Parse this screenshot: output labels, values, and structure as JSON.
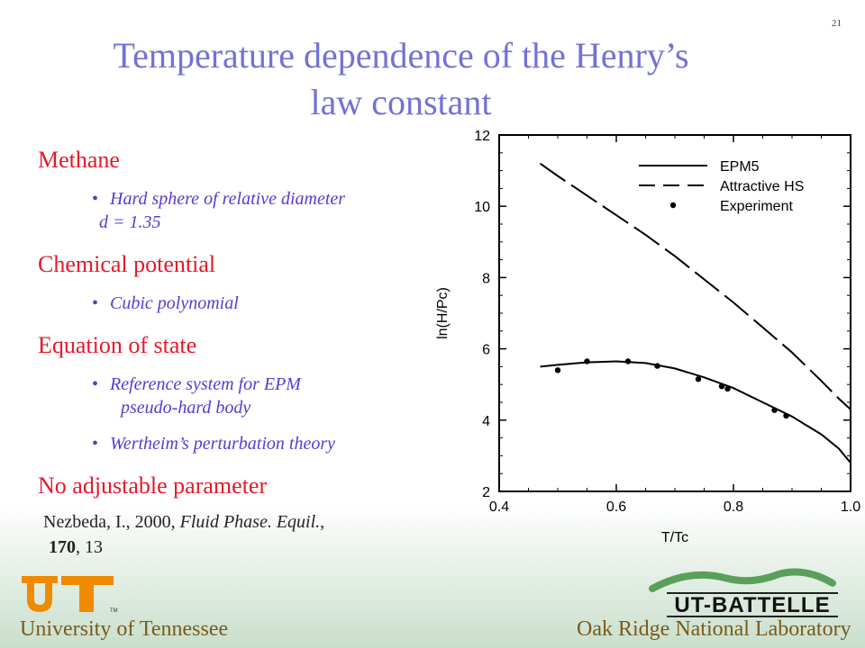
{
  "slide_number": "21",
  "title": {
    "line1": "Temperature dependence of the Henry’s",
    "line2": "law constant"
  },
  "bullets": [
    {
      "heading": "Methane",
      "subs": [
        [
          "Hard sphere of relative diameter",
          "d = 1.35"
        ]
      ]
    },
    {
      "heading": "Chemical potential",
      "subs": [
        [
          "Cubic polynomial"
        ]
      ]
    },
    {
      "heading": "Equation of state",
      "subs": [
        [
          "Reference system for EPM",
          "pseudo-hard body"
        ],
        [
          "Wertheim’s perturbation theory"
        ]
      ]
    },
    {
      "heading": "No adjustable parameter",
      "subs": []
    }
  ],
  "citation": {
    "authors": "Nezbeda, I., 2000,",
    "journal": "Fluid Phase. Equil.",
    "volume": "170",
    "pages": ", 13"
  },
  "chart_data": {
    "type": "line",
    "xlabel": "T/Tc",
    "ylabel": "ln(H/Pc)",
    "xlim": [
      0.4,
      1.0
    ],
    "ylim": [
      2,
      12
    ],
    "x_ticks": [
      "0.4",
      "0.6",
      "0.8",
      "1.0"
    ],
    "y_ticks": [
      "2",
      "4",
      "6",
      "8",
      "10",
      "12"
    ],
    "legend_position": "top-right",
    "series": [
      {
        "name": "EPM5",
        "style": "solid",
        "x": [
          0.47,
          0.5,
          0.55,
          0.6,
          0.65,
          0.7,
          0.75,
          0.8,
          0.85,
          0.9,
          0.95,
          0.98,
          1.0
        ],
        "y": [
          5.5,
          5.55,
          5.62,
          5.65,
          5.6,
          5.45,
          5.2,
          4.9,
          4.5,
          4.1,
          3.6,
          3.2,
          2.8
        ]
      },
      {
        "name": "Attractive HS",
        "style": "dashed",
        "x": [
          0.47,
          0.5,
          0.55,
          0.6,
          0.65,
          0.7,
          0.75,
          0.8,
          0.85,
          0.9,
          0.95,
          0.98,
          1.0
        ],
        "y": [
          11.2,
          10.85,
          10.3,
          9.75,
          9.2,
          8.6,
          7.95,
          7.3,
          6.6,
          5.9,
          5.1,
          4.6,
          4.3
        ]
      },
      {
        "name": "Experiment",
        "style": "markers",
        "x": [
          0.5,
          0.55,
          0.62,
          0.67,
          0.74,
          0.78,
          0.79,
          0.87,
          0.89
        ],
        "y": [
          5.4,
          5.65,
          5.65,
          5.52,
          5.15,
          4.95,
          4.88,
          4.28,
          4.12
        ]
      }
    ]
  },
  "logos": {
    "ut_text": "University of Tennessee",
    "ornl_brand": "UT-BATTELLE",
    "ornl_text": "Oak Ridge National Laboratory"
  },
  "colors": {
    "title": "#7272d6",
    "heading": "#e8172a",
    "subbullet": "#5a3ad0",
    "ut_orange": "#f08a00",
    "footer_text": "#7a5a1a"
  }
}
